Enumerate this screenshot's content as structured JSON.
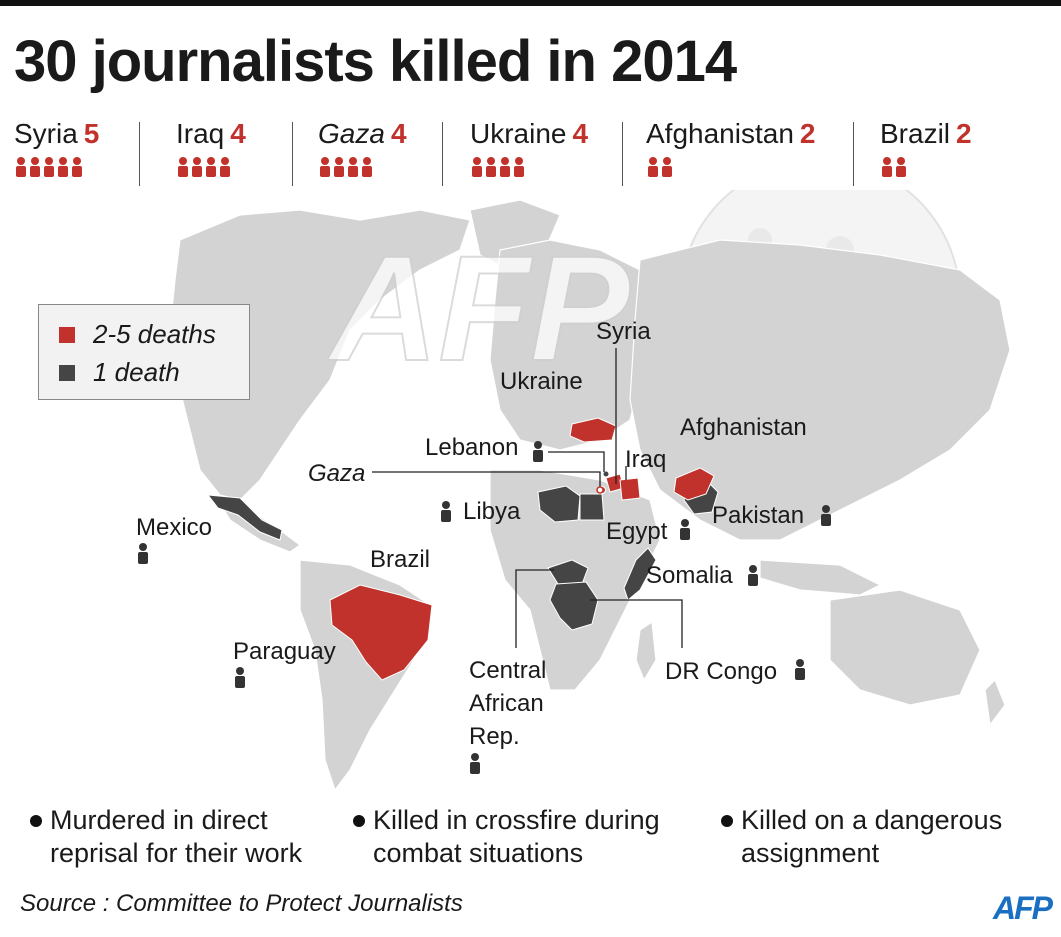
{
  "title": "30 journalists killed in 2014",
  "stats": [
    {
      "name": "Syria",
      "count": "5",
      "n": 5
    },
    {
      "name": "Iraq",
      "count": "4",
      "n": 4
    },
    {
      "name": "Gaza",
      "count": "4",
      "n": 4
    },
    {
      "name": "Ukraine",
      "count": "4",
      "n": 4
    },
    {
      "name": "Afghanistan",
      "count": "2",
      "n": 2
    },
    {
      "name": "Brazil",
      "count": "2",
      "n": 2
    }
  ],
  "legend": {
    "high": "2-5 deaths",
    "low": "1 death"
  },
  "labels": {
    "syria": "Syria",
    "ukraine": "Ukraine",
    "afghanistan": "Afghanistan",
    "lebanon": "Lebanon",
    "iraq": "Iraq",
    "gaza": "Gaza",
    "libya": "Libya",
    "egypt": "Egypt",
    "pakistan": "Pakistan",
    "mexico": "Mexico",
    "brazil": "Brazil",
    "somalia": "Somalia",
    "paraguay": "Paraguay",
    "central_african_1": "Central",
    "central_african_2": "African",
    "central_african_3": "Rep.",
    "dr_congo": "DR Congo"
  },
  "bullets": {
    "b1_line1": "Murdered in direct",
    "b1_line2": "reprisal for their work",
    "b2_line1": "Killed in crossfire during",
    "b2_line2": "combat situations",
    "b3_line1": "Killed on a dangerous",
    "b3_line2": "assignment"
  },
  "source": "Source : Committee to Protect Journalists",
  "logo": "AFP",
  "colors": {
    "high": "#c0322b",
    "low": "#454545",
    "land": "#d3d3d3"
  }
}
